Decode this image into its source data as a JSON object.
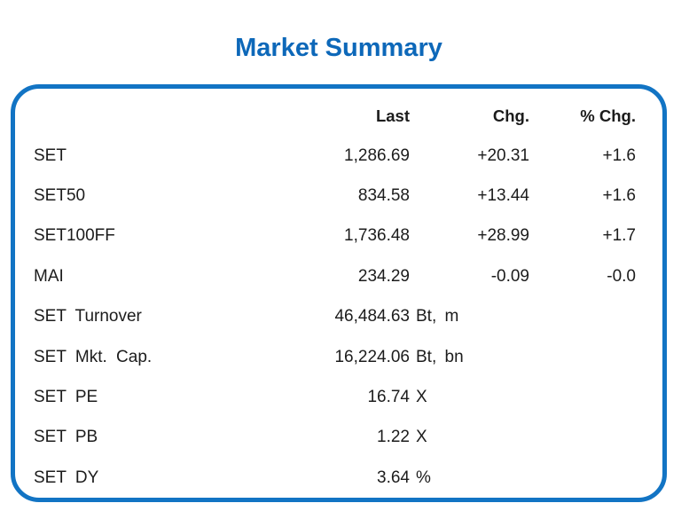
{
  "page": {
    "title": "Market Summary"
  },
  "colors": {
    "title_blue": "#0d68b9",
    "border_blue": "#1274c4",
    "text": "#1c1c1c"
  },
  "chart_data": {
    "type": "table",
    "title": "Market Summary",
    "headers": [
      "Last",
      "Chg.",
      "% Chg."
    ],
    "rows": [
      {
        "label": "SET",
        "last": "1,286.69",
        "unit": "",
        "chg": "+20.31",
        "pct": "+1.6"
      },
      {
        "label": "SET50",
        "last": "834.58",
        "unit": "",
        "chg": "+13.44",
        "pct": "+1.6"
      },
      {
        "label": "SET100FF",
        "last": "1,736.48",
        "unit": "",
        "chg": "+28.99",
        "pct": "+1.7"
      },
      {
        "label": "MAI",
        "last": "234.29",
        "unit": "",
        "chg": "-0.09",
        "pct": "-0.0"
      },
      {
        "label": "SET Turnover",
        "last": "46,484.63",
        "unit": "Bt, m",
        "chg": "",
        "pct": ""
      },
      {
        "label": "SET Mkt. Cap.",
        "last": "16,224.06",
        "unit": "Bt, bn",
        "chg": "",
        "pct": ""
      },
      {
        "label": "SET PE",
        "last": "16.74",
        "unit": "X",
        "chg": "",
        "pct": ""
      },
      {
        "label": "SET PB",
        "last": "1.22",
        "unit": "X",
        "chg": "",
        "pct": ""
      },
      {
        "label": "SET DY",
        "last": "3.64",
        "unit": "%",
        "chg": "",
        "pct": ""
      }
    ]
  }
}
